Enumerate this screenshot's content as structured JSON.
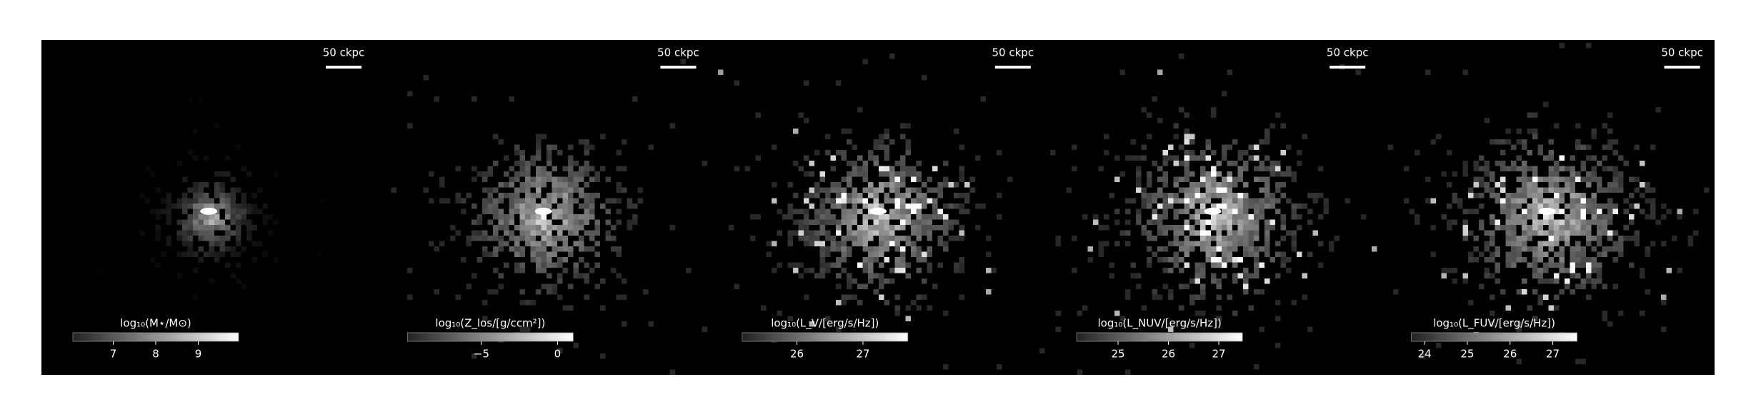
{
  "panels": [
    {
      "scale_label": "50 ckpc",
      "colorbar": {
        "label": "log₁₀(M⋆/M⊙)",
        "lim": [
          6.05,
          9.95
        ],
        "ticks": [
          7,
          8,
          9
        ]
      }
    },
    {
      "scale_label": "50 ckpc",
      "colorbar": {
        "label": "log₁₀(Z_los/[g/ccm²])",
        "lim": [
          -9.85,
          1.03
        ],
        "ticks": [
          {
            "value": -5,
            "label": "−5"
          },
          0
        ]
      }
    },
    {
      "scale_label": "50 ckpc",
      "colorbar": {
        "label": "log₁₀(L_V/[erg/s/Hz])",
        "lim": [
          25.17,
          27.68
        ],
        "ticks": [
          26,
          27
        ]
      }
    },
    {
      "scale_label": "50 ckpc",
      "colorbar": {
        "label": "log₁₀(L_NUV/[erg/s/Hz])",
        "lim": [
          24.18,
          27.47
        ],
        "ticks": [
          25,
          26,
          27
        ]
      }
    },
    {
      "scale_label": "50 ckpc",
      "colorbar": {
        "label": "log₁₀(L_FUV/[erg/s/Hz])",
        "lim": [
          23.69,
          27.57
        ],
        "ticks": [
          24,
          25,
          26,
          27
        ]
      }
    }
  ]
}
